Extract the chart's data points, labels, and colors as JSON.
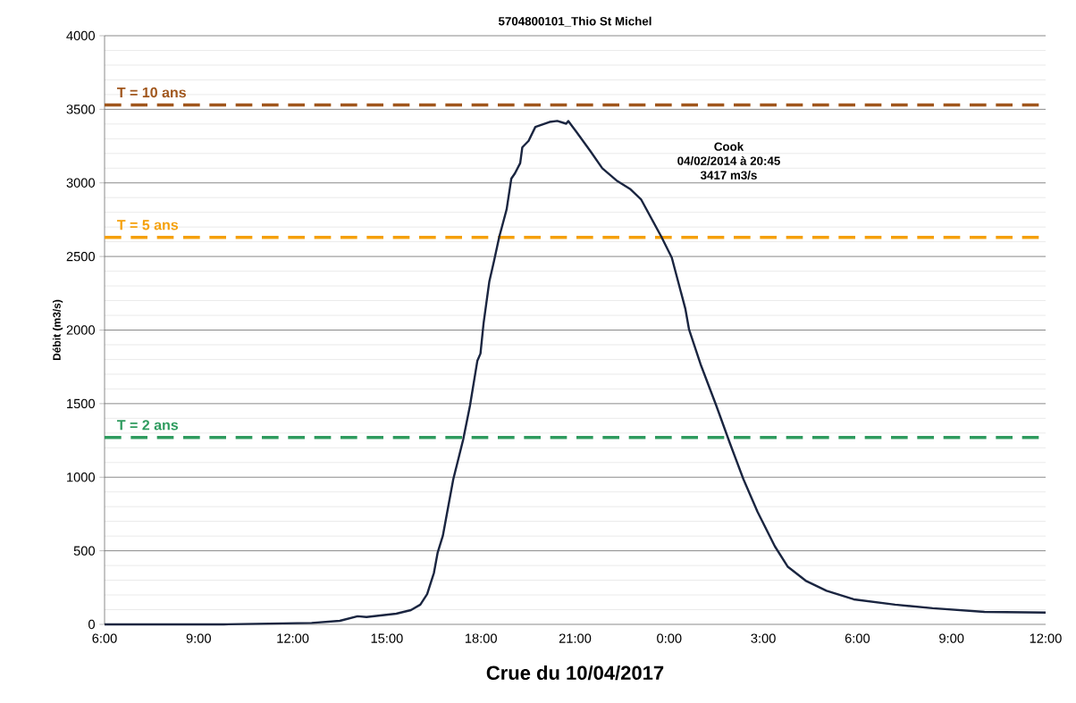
{
  "chart_data": {
    "type": "line",
    "title": "5704800101_Thio St Michel",
    "xlabel": "Crue du 10/04/2017",
    "ylabel": "Débit (m3/s)",
    "xlim": [
      "2017-04-10T06:00",
      "2017-04-11T12:00"
    ],
    "ylim": [
      0,
      4000
    ],
    "xticks": [
      {
        "value": "2017-04-10T06:00",
        "label": "6:00"
      },
      {
        "value": "2017-04-10T09:00",
        "label": "9:00"
      },
      {
        "value": "2017-04-10T12:00",
        "label": "12:00"
      },
      {
        "value": "2017-04-10T15:00",
        "label": "15:00"
      },
      {
        "value": "2017-04-10T18:00",
        "label": "18:00"
      },
      {
        "value": "2017-04-10T21:00",
        "label": "21:00"
      },
      {
        "value": "2017-04-11T00:00",
        "label": "0:00"
      },
      {
        "value": "2017-04-11T03:00",
        "label": "3:00"
      },
      {
        "value": "2017-04-11T06:00",
        "label": "6:00"
      },
      {
        "value": "2017-04-11T09:00",
        "label": "9:00"
      },
      {
        "value": "2017-04-11T12:00",
        "label": "12:00"
      }
    ],
    "yticks": [
      0,
      500,
      1000,
      1500,
      2000,
      2500,
      3000,
      3500,
      4000
    ],
    "grid": "y",
    "line_style": "solid",
    "marker": "none",
    "series": [
      {
        "color": "#1a2540",
        "x": [
          "2017-04-10T06:00",
          "2017-04-10T09:48",
          "2017-04-10T12:36",
          "2017-04-10T13:30",
          "2017-04-10T14:04",
          "2017-04-10T14:21",
          "2017-04-10T15:18",
          "2017-04-10T15:46",
          "2017-04-10T16:04",
          "2017-04-10T16:17",
          "2017-04-10T16:30",
          "2017-04-10T16:37",
          "2017-04-10T16:47",
          "2017-04-10T17:07",
          "2017-04-10T17:26",
          "2017-04-10T17:39",
          "2017-04-10T17:53",
          "2017-04-10T17:59",
          "2017-04-10T18:05",
          "2017-04-10T18:16",
          "2017-04-10T18:25",
          "2017-04-10T18:35",
          "2017-04-10T18:49",
          "2017-04-10T18:58",
          "2017-04-10T19:05",
          "2017-04-10T19:15",
          "2017-04-10T19:19",
          "2017-04-10T19:31",
          "2017-04-10T19:44",
          "2017-04-10T20:11",
          "2017-04-10T20:26",
          "2017-04-10T20:43",
          "2017-04-10T20:47",
          "2017-04-10T21:03",
          "2017-04-10T21:29",
          "2017-04-10T21:52",
          "2017-04-10T22:19",
          "2017-04-10T22:45",
          "2017-04-10T23:06",
          "2017-04-10T23:45",
          "2017-04-11T00:05",
          "2017-04-11T00:31",
          "2017-04-11T00:38",
          "2017-04-11T01:00",
          "2017-04-11T01:30",
          "2017-04-11T01:56",
          "2017-04-11T02:22",
          "2017-04-11T02:49",
          "2017-04-11T03:22",
          "2017-04-11T03:47",
          "2017-04-11T04:21",
          "2017-04-11T05:01",
          "2017-04-11T05:53",
          "2017-04-11T07:12",
          "2017-04-11T08:24",
          "2017-04-11T10:03",
          "2017-04-11T12:00"
        ],
        "values": [
          0,
          0,
          10,
          24,
          55,
          50,
          73,
          97,
          134,
          206,
          350,
          486,
          601,
          986,
          1256,
          1487,
          1790,
          1840,
          2048,
          2331,
          2470,
          2634,
          2819,
          3029,
          3065,
          3134,
          3241,
          3285,
          3380,
          3414,
          3421,
          3402,
          3420,
          3344,
          3217,
          3099,
          3017,
          2959,
          2889,
          2634,
          2492,
          2143,
          2003,
          1768,
          1487,
          1232,
          986,
          765,
          531,
          391,
          297,
          228,
          170,
          134,
          110,
          85,
          80
        ]
      }
    ],
    "ref_lines": [
      {
        "axis": "y",
        "value": 3530,
        "color": "#a0561c",
        "line_style": "dashed"
      },
      {
        "axis": "y",
        "value": 2630,
        "color": "#f5a00a",
        "line_style": "dashed"
      },
      {
        "axis": "y",
        "value": 1270,
        "color": "#2e9b5e",
        "line_style": "dashed"
      }
    ],
    "annotations": [
      "Cook",
      "04/02/2014 à 20:45",
      "3417 m3/s",
      {
        "text": "T = 10 ans",
        "x": "2017-04-10T06:30",
        "y": 3530
      },
      {
        "text": "T = 5 ans",
        "x": "2017-04-10T06:30",
        "y": 2630
      },
      {
        "text": "T = 2 ans",
        "x": "2017-04-10T06:30",
        "y": 1270
      }
    ]
  }
}
